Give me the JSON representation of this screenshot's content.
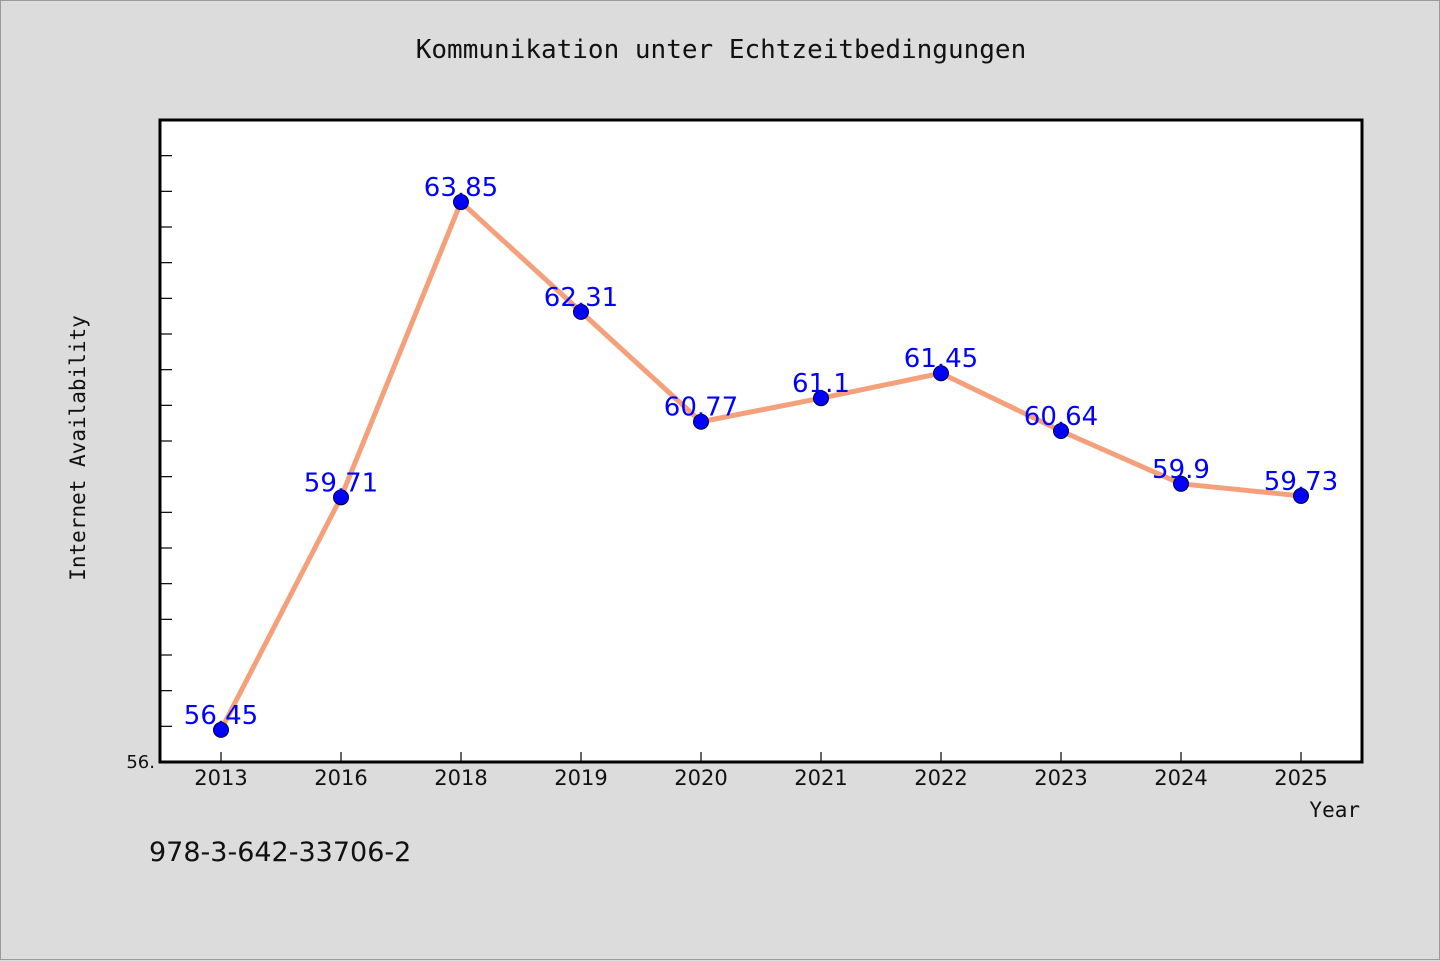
{
  "chart_data": {
    "type": "line",
    "title": "Kommunikation unter Echtzeitbedingungen",
    "xlabel": "Year",
    "ylabel": "Internet Availability",
    "categories": [
      "2013",
      "2016",
      "2018",
      "2019",
      "2020",
      "2021",
      "2022",
      "2023",
      "2024",
      "2025"
    ],
    "series": [
      {
        "values": [
          56.45,
          59.71,
          63.85,
          62.31,
          60.77,
          61.1,
          61.45,
          60.64,
          59.9,
          59.73
        ],
        "line_color": "#f4a07a",
        "marker_color": "#0000ff"
      }
    ],
    "data_labels": [
      "56.45",
      "59.71",
      "63.85",
      "62.31",
      "60.77",
      "61.1",
      "61.45",
      "60.64",
      "59.9",
      "59.73"
    ],
    "y_tick_label": "56.",
    "ylim": [
      56.0,
      65.0
    ],
    "grid": false,
    "legend": "none"
  },
  "footer_text": "978-3-642-33706-2",
  "colors": {
    "background": "#dcdcdc",
    "plot_background": "#ffffff",
    "line": "#f4a07a",
    "marker": "#0000ff",
    "data_label": "#0000ff"
  }
}
